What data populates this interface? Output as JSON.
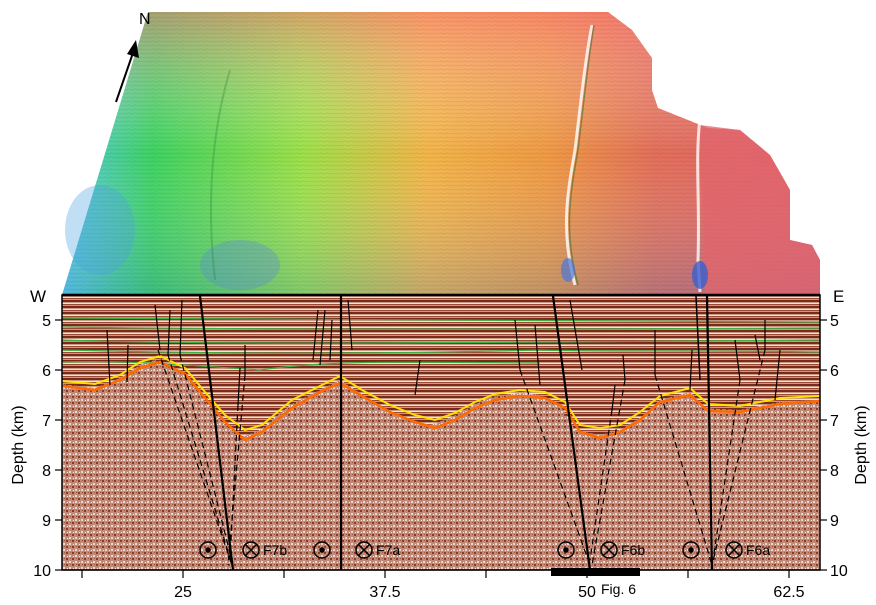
{
  "north_label": "N",
  "west_label": "W",
  "east_label": "E",
  "left_axis": {
    "title": "Depth (km)",
    "ticks": [
      "5",
      "6",
      "7",
      "8",
      "9",
      "10"
    ]
  },
  "right_axis": {
    "title": "Depth (km)",
    "ticks": [
      "5",
      "6",
      "7",
      "8",
      "9",
      "10"
    ]
  },
  "bottom_axis": {
    "ticks": [
      "25",
      "37.5",
      "50",
      "62.5"
    ]
  },
  "scale_bar_label": "Fig. 6",
  "fault_labels": [
    "F7b",
    "F7a",
    "F6b",
    "F6a"
  ],
  "colors": {
    "horizon_green": "#3cb043",
    "horizon_orange": "#ff6a00",
    "horizon_yellow": "#ffe000",
    "seismic_base": "#a0503a",
    "fault_line": "#000000"
  },
  "icons": [
    "north-arrow-icon",
    "out-of-page-symbol-icon",
    "into-page-symbol-icon"
  ]
}
